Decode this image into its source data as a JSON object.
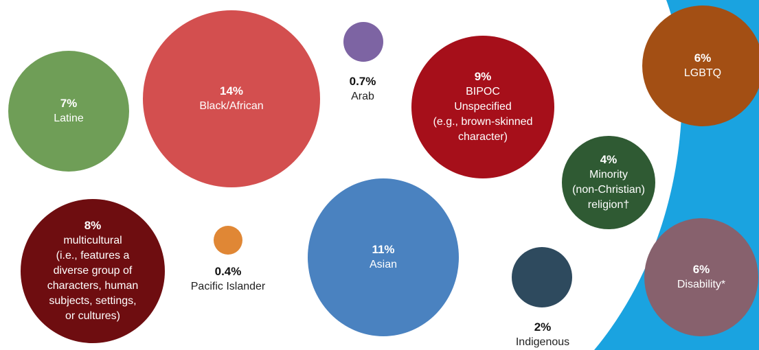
{
  "chart_data": {
    "type": "bubble",
    "colors": {
      "background": "#ffffff",
      "accent_band": "#1aa3e0"
    },
    "categories": [
      {
        "id": "latine",
        "percent": 7,
        "value_label": "7%",
        "label": "Latine",
        "color": "#6f9e57"
      },
      {
        "id": "black-african",
        "percent": 14,
        "value_label": "14%",
        "label": "Black/African",
        "color": "#d34f4f"
      },
      {
        "id": "arab",
        "percent": 0.7,
        "value_label": "0.7%",
        "label": "Arab",
        "color": "#7d64a3"
      },
      {
        "id": "bipoc-unspecified",
        "percent": 9,
        "value_label": "9%",
        "label": "BIPOC\nUnspecified\n(e.g., brown-skinned\ncharacter)",
        "color": "#a60f1a"
      },
      {
        "id": "lgbtq",
        "percent": 6,
        "value_label": "6%",
        "label": "LGBTQ",
        "color": "#a34f14"
      },
      {
        "id": "minority-religion",
        "percent": 4,
        "value_label": "4%",
        "label": "Minority\n(non-Christian)\nreligion†",
        "color": "#2f5a33"
      },
      {
        "id": "multicultural",
        "percent": 8,
        "value_label": "8%",
        "label": "multicultural\n(i.e., features a\ndiverse group of\ncharacters, human\nsubjects, settings,\nor cultures)",
        "color": "#6e0d10"
      },
      {
        "id": "pacific-islander",
        "percent": 0.4,
        "value_label": "0.4%",
        "label": "Pacific Islander",
        "color": "#e08735"
      },
      {
        "id": "asian",
        "percent": 11,
        "value_label": "11%",
        "label": "Asian",
        "color": "#4a82c0"
      },
      {
        "id": "indigenous",
        "percent": 2,
        "value_label": "2%",
        "label": "Indigenous",
        "color": "#2e4a5e"
      },
      {
        "id": "disability",
        "percent": 6,
        "value_label": "6%",
        "label": "Disability*",
        "color": "#87616d"
      }
    ]
  }
}
